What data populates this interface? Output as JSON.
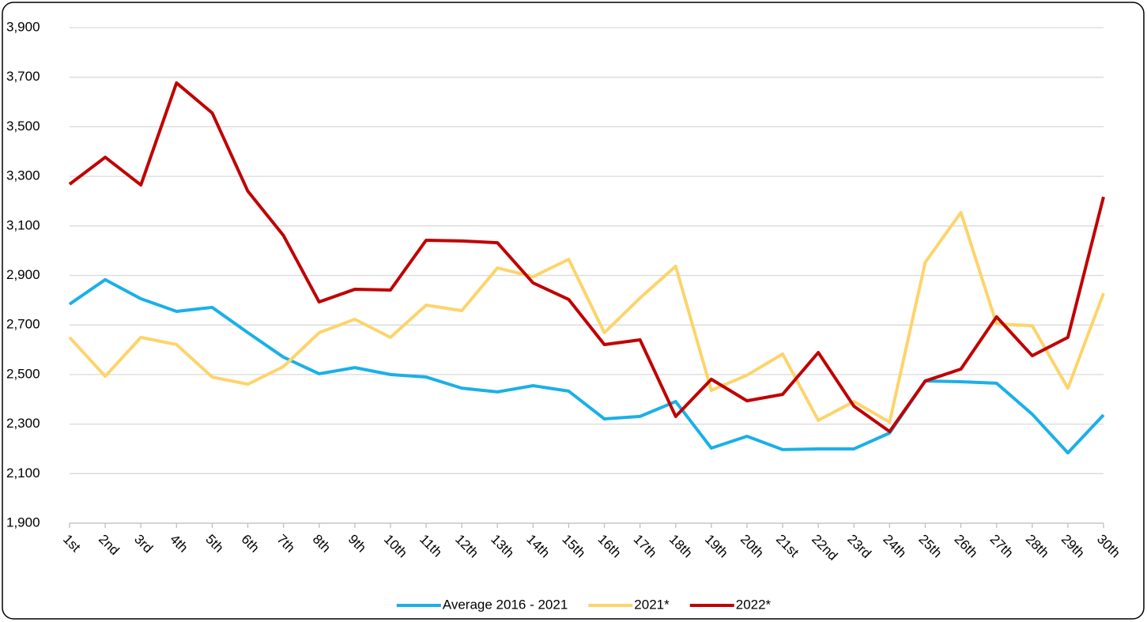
{
  "chart_data": {
    "type": "line",
    "categories": [
      "1st",
      "2nd",
      "3rd",
      "4th",
      "5th",
      "6th",
      "7th",
      "8th",
      "9th",
      "10th",
      "11th",
      "12th",
      "13th",
      "14th",
      "15th",
      "16th",
      "17th",
      "18th",
      "19th",
      "20th",
      "21st",
      "22nd",
      "23rd",
      "24th",
      "25th",
      "26th",
      "27th",
      "28th",
      "29th",
      "30th"
    ],
    "series": [
      {
        "name": "Average 2016 - 2021",
        "color": "#1ab0e8",
        "values": [
          2784,
          2883,
          2806,
          2755,
          2771,
          2669,
          2570,
          2503,
          2528,
          2500,
          2490,
          2445,
          2430,
          2455,
          2433,
          2321,
          2331,
          2391,
          2203,
          2251,
          2197,
          2200,
          2200,
          2264,
          2474,
          2471,
          2465,
          2340,
          2184,
          2337
        ]
      },
      {
        "name": "2021*",
        "color": "#fdd46b",
        "values": [
          2650,
          2493,
          2650,
          2621,
          2490,
          2461,
          2532,
          2669,
          2723,
          2650,
          2780,
          2758,
          2930,
          2895,
          2965,
          2669,
          2809,
          2937,
          2436,
          2497,
          2583,
          2315,
          2391,
          2308,
          2953,
          3154,
          2704,
          2697,
          2445,
          2828
        ]
      },
      {
        "name": "2022*",
        "color": "#c00000",
        "values": [
          3268,
          3377,
          3265,
          3677,
          3556,
          3240,
          3061,
          2793,
          2844,
          2841,
          3042,
          3039,
          3032,
          2870,
          2803,
          2621,
          2640,
          2331,
          2481,
          2394,
          2420,
          2589,
          2372,
          2270,
          2474,
          2522,
          2733,
          2576,
          2650,
          3217
        ]
      }
    ],
    "ylim": [
      1900,
      3900
    ],
    "yticks": [
      {
        "value": 1900,
        "label": "1,900"
      },
      {
        "value": 2100,
        "label": "2,100"
      },
      {
        "value": 2300,
        "label": "2,300"
      },
      {
        "value": 2500,
        "label": "2,500"
      },
      {
        "value": 2700,
        "label": "2,700"
      },
      {
        "value": 2900,
        "label": "2,900"
      },
      {
        "value": 3100,
        "label": "3,100"
      },
      {
        "value": 3300,
        "label": "3,300"
      },
      {
        "value": 3500,
        "label": "3,500"
      },
      {
        "value": 3700,
        "label": "3,700"
      },
      {
        "value": 3900,
        "label": "3,900"
      }
    ],
    "grid": true,
    "legend": "bottom"
  }
}
